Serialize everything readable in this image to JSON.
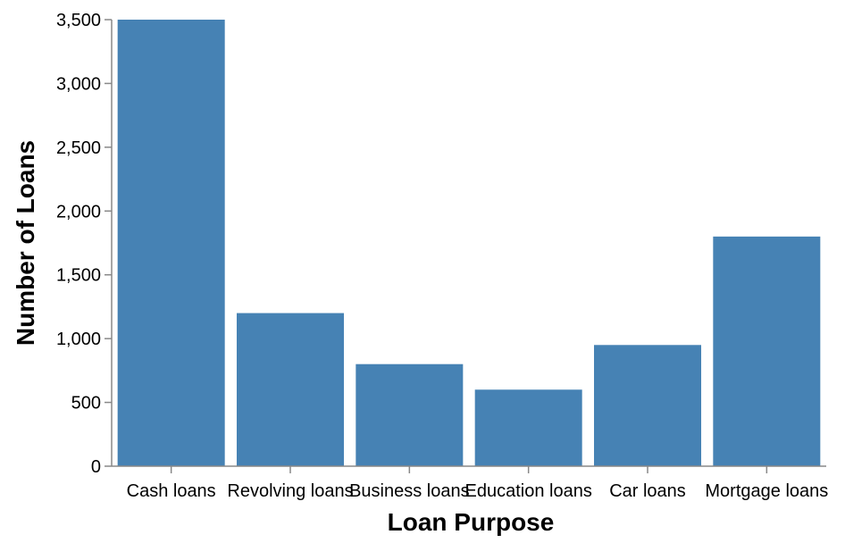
{
  "chart_data": {
    "type": "bar",
    "categories": [
      "Cash loans",
      "Revolving loans",
      "Business loans",
      "Education loans",
      "Car loans",
      "Mortgage loans"
    ],
    "values": [
      3500,
      1200,
      800,
      600,
      950,
      1800
    ],
    "title": "",
    "xlabel": "Loan Purpose",
    "ylabel": "Number of Loans",
    "ylim": [
      0,
      3500
    ],
    "yticks": [
      0,
      500,
      1000,
      1500,
      2000,
      2500,
      3000,
      3500
    ],
    "ytick_labels": [
      "0",
      "500",
      "1,000",
      "1,500",
      "2,000",
      "2,500",
      "3,000",
      "3,500"
    ],
    "grid": false,
    "bar_color": "#4682b4",
    "axis_color": "#888888"
  }
}
